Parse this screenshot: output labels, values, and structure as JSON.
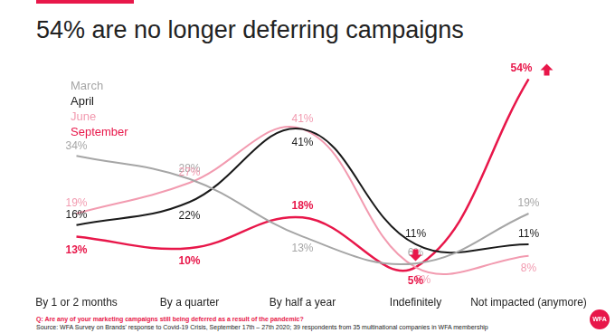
{
  "chart_data": {
    "type": "line",
    "title": "54% are no longer deferring campaigns",
    "question": "Q: Are any of your marketing campaigns still being deferred as a result of the pandemic?",
    "source": "Source: WFA Survey on Brands' response to Covid-19 Crisis, September 17th – 27th 2020; 39 respondents from 35 multinational companies in WFA membership",
    "logo": "WFA",
    "categories": [
      "By 1 or 2 months",
      "By a quarter",
      "By half a year",
      "Indefinitely",
      "Not impacted (anymore)"
    ],
    "series": [
      {
        "name": "March",
        "color": "#a6a6a6",
        "values": [
          34,
          28,
          13,
          6,
          19
        ],
        "value_labels": [
          "34%",
          "28%",
          "13%",
          "6%",
          "19%"
        ]
      },
      {
        "name": "April",
        "color": "#1a1a1a",
        "values": [
          16,
          22,
          41,
          11,
          11
        ],
        "value_labels": [
          "16%",
          "22%",
          "41%",
          "11%",
          "11%"
        ]
      },
      {
        "name": "June",
        "color": "#f29bb0",
        "values": [
          19,
          27,
          41,
          5,
          8
        ],
        "value_labels": [
          "19%",
          "27%",
          "41%",
          "5%",
          "8%"
        ]
      },
      {
        "name": "September",
        "color": "#e8174a",
        "values": [
          13,
          10,
          18,
          5,
          54
        ],
        "value_labels": [
          "13%",
          "10%",
          "18%",
          "5%",
          "54%"
        ]
      }
    ],
    "ylim": [
      0,
      60
    ],
    "grid": false,
    "legend": "top-left",
    "data_labels": true,
    "tick_labels": "x"
  }
}
